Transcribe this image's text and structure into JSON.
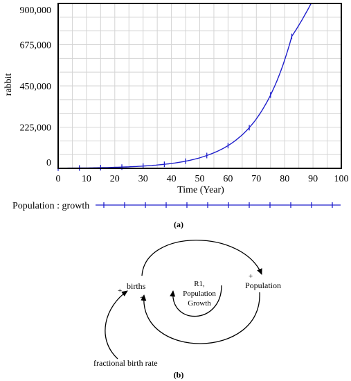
{
  "chart_data": {
    "type": "line",
    "title": "",
    "xlabel": "Time (Year)",
    "ylabel": "rabbit",
    "xlim": [
      0,
      100
    ],
    "ylim": [
      0,
      900000
    ],
    "x_ticks": [
      "0",
      "10",
      "20",
      "30",
      "40",
      "50",
      "60",
      "70",
      "80",
      "90",
      "100"
    ],
    "y_ticks": [
      "0",
      "225,000",
      "450,000",
      "675,000",
      "900,000"
    ],
    "grid": true,
    "legend_position": "below",
    "series": [
      {
        "name": "Population : growth",
        "color": "#1f1fcc",
        "marker": "tick",
        "x": [
          0,
          7.5,
          15,
          22.5,
          30,
          37.5,
          45,
          52.5,
          60,
          67.5,
          75,
          82.5,
          90,
          91
        ],
        "y": [
          1000,
          1800,
          3500,
          6700,
          12500,
          22000,
          39000,
          70000,
          124000,
          222000,
          400000,
          720000,
          920000,
          920000
        ]
      }
    ]
  },
  "captions": {
    "a": "(a)",
    "b": "(b)"
  },
  "diagram": {
    "nodes": {
      "births": "births",
      "population": "Population",
      "fractional_birth_rate": "fractional birth rate"
    },
    "loop_label": [
      "R1,",
      "Population",
      "Growth"
    ],
    "polarity": {
      "births_in": "+",
      "births_loop": "+",
      "population": "+"
    }
  }
}
